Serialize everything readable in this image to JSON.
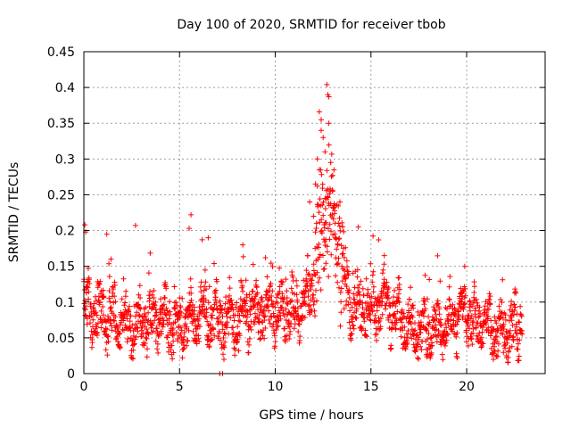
{
  "chart_data": {
    "type": "scatter",
    "title": "Day 100 of 2020, SRMTID for receiver tbob",
    "xlabel": "GPS time / hours",
    "ylabel": "SRMTID / TECUs",
    "xlim": [
      0,
      24.1
    ],
    "ylim": [
      0,
      0.45
    ],
    "x_ticks": [
      0,
      5,
      10,
      15,
      20
    ],
    "y_ticks": [
      0,
      0.05,
      0.1,
      0.15,
      0.2,
      0.25,
      0.3,
      0.35,
      0.4,
      0.45
    ],
    "x_tick_labels": [
      "0",
      "5",
      "10",
      "15",
      "20"
    ],
    "y_tick_labels": [
      "0",
      "0.05",
      "0.1",
      "0.15",
      "0.2",
      "0.25",
      "0.3",
      "0.35",
      "0.4",
      "0.45"
    ],
    "grid": true,
    "marker": "+",
    "color": "#ff0000",
    "series": [
      {
        "name": "SRMTID",
        "x_start": 0,
        "x_end": 22.9,
        "x_step": 0.012,
        "baseline_profile": [
          [
            0,
            0.09
          ],
          [
            1,
            0.085
          ],
          [
            2,
            0.07
          ],
          [
            3,
            0.07
          ],
          [
            4,
            0.075
          ],
          [
            5,
            0.065
          ],
          [
            6,
            0.08
          ],
          [
            7,
            0.075
          ],
          [
            8,
            0.075
          ],
          [
            9,
            0.085
          ],
          [
            10,
            0.09
          ],
          [
            11,
            0.085
          ],
          [
            12,
            0.12
          ],
          [
            12.8,
            0.2
          ],
          [
            13.5,
            0.13
          ],
          [
            14,
            0.09
          ],
          [
            15,
            0.09
          ],
          [
            15.7,
            0.1
          ],
          [
            16.5,
            0.08
          ],
          [
            17.5,
            0.05
          ],
          [
            18.5,
            0.065
          ],
          [
            19.5,
            0.075
          ],
          [
            20,
            0.08
          ],
          [
            21,
            0.065
          ],
          [
            22,
            0.06
          ],
          [
            22.9,
            0.065
          ]
        ],
        "peak_points": [
          {
            "x": 12.7,
            "y": 0.404
          },
          {
            "x": 12.75,
            "y": 0.39
          },
          {
            "x": 12.8,
            "y": 0.387
          },
          {
            "x": 12.3,
            "y": 0.366
          },
          {
            "x": 12.4,
            "y": 0.355
          },
          {
            "x": 12.8,
            "y": 0.35
          },
          {
            "x": 12.4,
            "y": 0.34
          },
          {
            "x": 12.5,
            "y": 0.33
          },
          {
            "x": 12.6,
            "y": 0.31
          },
          {
            "x": 12.2,
            "y": 0.3
          },
          {
            "x": 12.9,
            "y": 0.295
          },
          {
            "x": 12.3,
            "y": 0.285
          },
          {
            "x": 12.1,
            "y": 0.265
          },
          {
            "x": 12.2,
            "y": 0.262
          },
          {
            "x": 13.0,
            "y": 0.255
          },
          {
            "x": 12.6,
            "y": 0.245
          },
          {
            "x": 11.8,
            "y": 0.24
          },
          {
            "x": 13.1,
            "y": 0.235
          },
          {
            "x": 12.0,
            "y": 0.22
          },
          {
            "x": 13.3,
            "y": 0.21
          }
        ],
        "other_points": [
          {
            "x": 0.05,
            "y": 0.208
          },
          {
            "x": 0.1,
            "y": 0.198
          },
          {
            "x": 1.2,
            "y": 0.195
          },
          {
            "x": 2.7,
            "y": 0.207
          },
          {
            "x": 5.6,
            "y": 0.222
          },
          {
            "x": 5.5,
            "y": 0.203
          },
          {
            "x": 6.5,
            "y": 0.19
          },
          {
            "x": 8.3,
            "y": 0.18
          },
          {
            "x": 15.4,
            "y": 0.187
          },
          {
            "x": 15.7,
            "y": 0.165
          },
          {
            "x": 19.9,
            "y": 0.15
          },
          {
            "x": 7.1,
            "y": 0.0
          },
          {
            "x": 7.25,
            "y": 0.0
          }
        ]
      }
    ]
  }
}
